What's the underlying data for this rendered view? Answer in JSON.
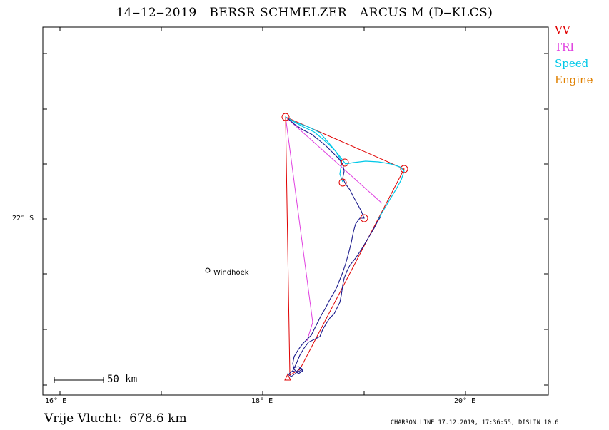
{
  "title": "14‒12‒2019   BERSR SCHMELZER   ARCUS M (D‒KLCS)",
  "legend": [
    {
      "label": "VV",
      "color": "#e00000"
    },
    {
      "label": "TRI",
      "color": "#e040e0"
    },
    {
      "label": "Speed",
      "color": "#00c8e8"
    },
    {
      "label": "Engine",
      "color": "#e08000"
    }
  ],
  "axes": {
    "x_ticks": [
      "16° E",
      "18° E",
      "20° E"
    ],
    "y_ticks": [
      "22° S"
    ]
  },
  "scale_bar": {
    "label": "50  km"
  },
  "city": {
    "name": "Windhoek"
  },
  "footer": {
    "distance": "Vrije Vlucht:  678.6 km",
    "info": "CHARRON.LINE 17.12.2019, 17:36:55, DISLIN 10.6"
  },
  "colors": {
    "track": "#1a1a8c",
    "triangle": "#e040e0",
    "declared": "#e00000",
    "speed": "#00c8e8"
  }
}
